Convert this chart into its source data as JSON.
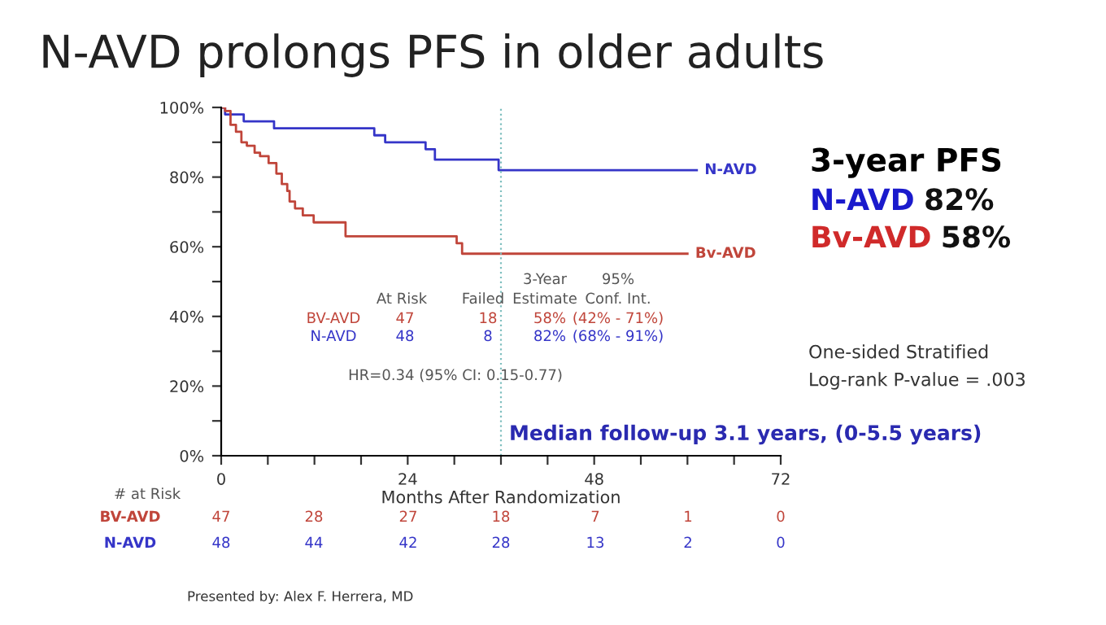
{
  "chart_data": {
    "type": "step",
    "title": "N-AVD prolongs PFS in older adults",
    "xlabel": "Months After Randomization",
    "series": [
      {
        "name": "N-AVD",
        "color": "#3535c8",
        "x": [
          0,
          0.5,
          2.9,
          6.8,
          19.7,
          21.1,
          26.3,
          27.5,
          35.7,
          61.2
        ],
        "values": [
          100,
          98,
          96,
          94,
          92,
          90,
          88,
          85,
          82,
          82
        ]
      },
      {
        "name": "Bv-AVD",
        "color": "#c0453a",
        "x": [
          0,
          0.5,
          1.2,
          1.9,
          2.6,
          3.3,
          4.3,
          5.0,
          6.1,
          7.1,
          7.8,
          8.5,
          8.8,
          9.5,
          10.5,
          11.9,
          16.0,
          30.3,
          31.0,
          60.0
        ],
        "values": [
          100,
          99,
          95,
          93,
          90,
          89,
          87,
          86,
          84,
          81,
          78,
          76,
          73,
          71,
          69,
          67,
          63,
          61,
          58,
          58
        ]
      }
    ],
    "xlim": [
      0,
      72
    ],
    "ylim": [
      0,
      100
    ],
    "xticks": [
      0,
      {
        "value": 6,
        "label": null
      },
      {
        "value": 12,
        "label": null
      },
      {
        "value": 18,
        "label": null
      },
      24,
      {
        "value": 30,
        "label": null
      },
      {
        "value": 36,
        "label": null
      },
      {
        "value": 42,
        "label": null
      },
      48,
      {
        "value": 54,
        "label": null
      },
      {
        "value": 60,
        "label": null
      },
      {
        "value": 66,
        "label": null
      },
      72
    ],
    "yticks": [
      {
        "value": 0,
        "label": "0%"
      },
      {
        "value": 10,
        "label": null
      },
      {
        "value": 20,
        "label": "20%"
      },
      {
        "value": 30,
        "label": null
      },
      {
        "value": 40,
        "label": "40%"
      },
      {
        "value": 50,
        "label": null
      },
      {
        "value": 60,
        "label": "60%"
      },
      {
        "value": 70,
        "label": null
      },
      {
        "value": 80,
        "label": "80%"
      },
      {
        "value": 90,
        "label": null
      },
      {
        "value": 100,
        "label": "100%"
      }
    ],
    "ref_lines": [
      {
        "axis": "x",
        "value": 36,
        "color": "#7fbfbf",
        "line_style": "dotted"
      }
    ],
    "grid": false,
    "legend": false,
    "annotations": [
      "At Risk",
      "Failed",
      "3-Year",
      "Estimate",
      "95%",
      "Conf. Int.",
      "BV-AVD",
      "47",
      "18",
      "58%",
      "(42% - 71%)",
      "N-AVD",
      "48",
      "8",
      "82%",
      "(68% - 91%)",
      "HR=0.34 (95% CI: 0.15-0.77)",
      "Median follow-up 3.1 years, (0-5.5 years)",
      "3-year PFS",
      "N-AVD",
      "82%",
      "Bv-AVD",
      "58%",
      "One-sided Stratified",
      "Log-rank P-value = .003",
      "# at Risk",
      "BV-AVD",
      "47",
      "28",
      "27",
      "18",
      "7",
      "1",
      "0",
      "N-AVD",
      "48",
      "44",
      "42",
      "28",
      "13",
      "2",
      "0",
      "Presented by: Alex F. Herrera, MD"
    ]
  }
}
